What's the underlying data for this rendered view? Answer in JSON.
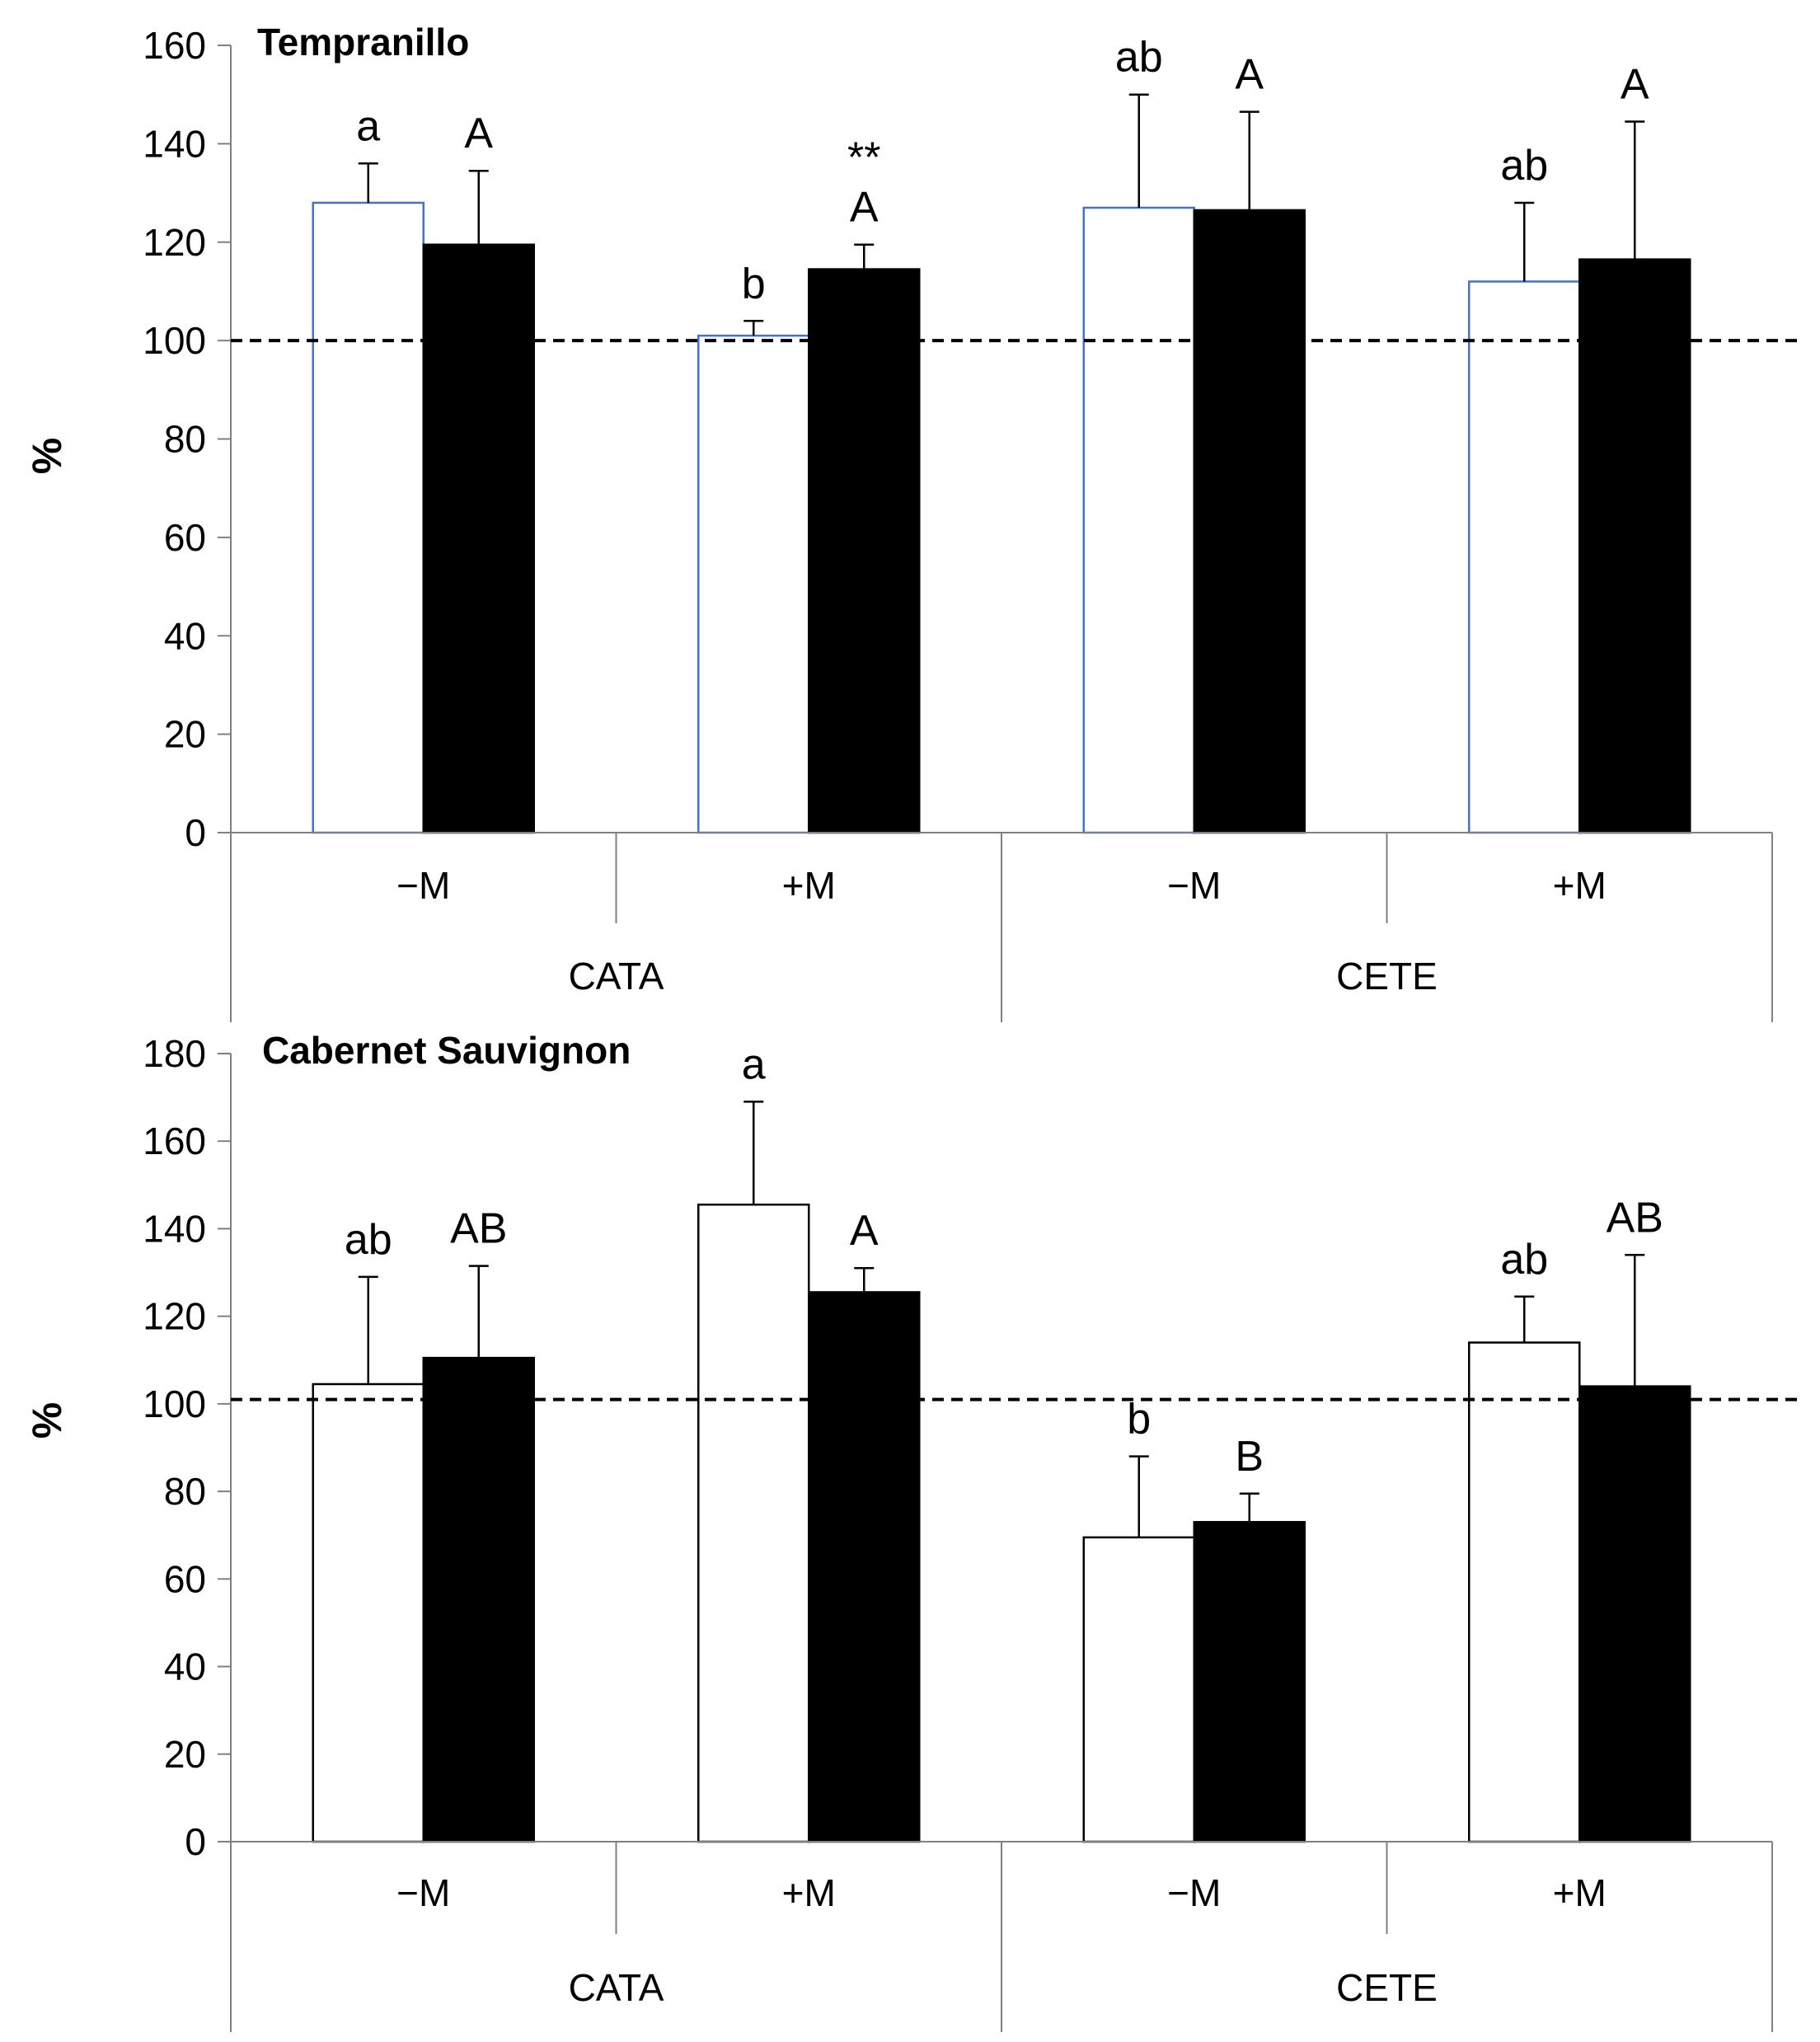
{
  "chart_data": [
    {
      "type": "bar",
      "title": "Tempranillo",
      "ylabel": "%",
      "xlabel": "",
      "ylim": [
        0,
        160
      ],
      "yticks": [
        0,
        20,
        40,
        60,
        80,
        100,
        120,
        140,
        160
      ],
      "reference_line": 100,
      "categories": [
        "−M",
        "+M",
        "−M",
        "+M"
      ],
      "groups": [
        {
          "label": "CATA",
          "span": [
            0,
            1
          ]
        },
        {
          "label": "CETE",
          "span": [
            2,
            3
          ]
        }
      ],
      "series": [
        {
          "name": "open bars",
          "fill": "#ffffff",
          "stroke": "#4472c4",
          "values": [
            128,
            101,
            127,
            112
          ],
          "errors": [
            8,
            3,
            23,
            16
          ],
          "labels": [
            "a",
            "b",
            "ab",
            "ab"
          ],
          "extra_labels": [
            "",
            "",
            "",
            ""
          ]
        },
        {
          "name": "filled bars",
          "fill": "#000000",
          "stroke": "#000000",
          "values": [
            119.5,
            114.5,
            126.5,
            116.5
          ],
          "errors": [
            15,
            5,
            20,
            28
          ],
          "labels": [
            "A",
            "A",
            "A",
            "A"
          ],
          "extra_labels": [
            "",
            "**",
            "",
            ""
          ]
        }
      ]
    },
    {
      "type": "bar",
      "title": "Cabernet Sauvignon",
      "ylabel": "%",
      "xlabel": "",
      "ylim": [
        0,
        180
      ],
      "yticks": [
        0,
        20,
        40,
        60,
        80,
        100,
        120,
        140,
        160,
        180
      ],
      "reference_line": 101,
      "categories": [
        "−M",
        "+M",
        "−M",
        "+M"
      ],
      "groups": [
        {
          "label": "CATA",
          "span": [
            0,
            1
          ]
        },
        {
          "label": "CETE",
          "span": [
            2,
            3
          ]
        }
      ],
      "series": [
        {
          "name": "open bars",
          "fill": "#ffffff",
          "stroke": "#000000",
          "values": [
            104.5,
            145.5,
            69.5,
            114
          ],
          "errors": [
            24.5,
            23.5,
            18.5,
            10.5
          ],
          "labels": [
            "ab",
            "a",
            "b",
            "ab"
          ],
          "extra_labels": [
            "",
            "",
            "",
            ""
          ]
        },
        {
          "name": "filled bars",
          "fill": "#000000",
          "stroke": "#000000",
          "values": [
            110.5,
            125.5,
            73,
            104
          ],
          "errors": [
            21,
            5.5,
            6.5,
            30
          ],
          "labels": [
            "AB",
            "A",
            "B",
            "AB"
          ],
          "extra_labels": [
            "",
            "",
            "",
            ""
          ]
        }
      ]
    }
  ]
}
